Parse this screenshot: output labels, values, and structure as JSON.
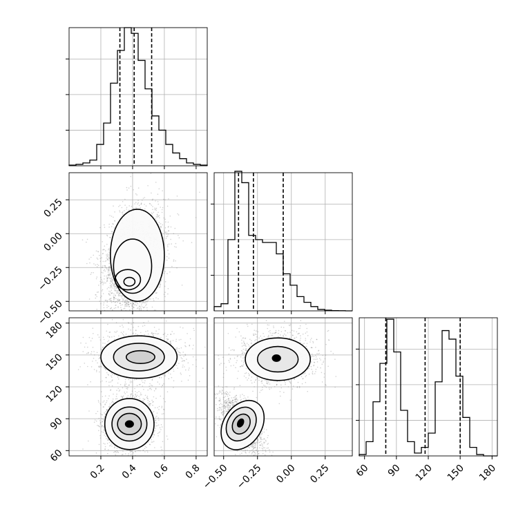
{
  "chart_data": {
    "type": "corner",
    "grid": true,
    "parameters": [
      {
        "range": [
          0.0,
          0.87
        ],
        "ticks": [
          0.2,
          0.4,
          0.6,
          0.8
        ],
        "tick_labels": [
          "0.2",
          "0.4",
          "0.6",
          "0.8"
        ],
        "quantiles": [
          0.32,
          0.41,
          0.52
        ],
        "hist": [
          0.005,
          0.01,
          0.02,
          0.04,
          0.15,
          0.3,
          0.58,
          0.81,
          0.97,
          0.93,
          0.74,
          0.54,
          0.35,
          0.25,
          0.15,
          0.09,
          0.05,
          0.02,
          0.01,
          0.005
        ]
      },
      {
        "range": [
          -0.57,
          0.45
        ],
        "ticks": [
          -0.5,
          -0.25,
          0.0,
          0.25
        ],
        "tick_labels": [
          "−0.50",
          "−0.25",
          "0.00",
          "0.25"
        ],
        "quantiles": [
          -0.39,
          -0.28,
          -0.06
        ],
        "hist": [
          0.03,
          0.05,
          0.5,
          0.98,
          0.9,
          0.53,
          0.5,
          0.48,
          0.48,
          0.4,
          0.26,
          0.18,
          0.1,
          0.06,
          0.03,
          0.01,
          0.005,
          0.002,
          0.001,
          0.0
        ]
      },
      {
        "range": [
          55,
          185
        ],
        "ticks": [
          60,
          90,
          120,
          150,
          180
        ],
        "tick_labels": [
          "60",
          "90",
          "120",
          "150",
          "180"
        ],
        "quantiles": [
          80,
          117,
          150
        ],
        "hist": [
          0.01,
          0.1,
          0.38,
          0.65,
          0.96,
          0.73,
          0.32,
          0.1,
          0.02,
          0.06,
          0.16,
          0.52,
          0.88,
          0.82,
          0.56,
          0.27,
          0.06,
          0.01,
          0.0,
          0.0
        ]
      }
    ],
    "pairs": [
      {
        "x": 0,
        "y": 1,
        "clusters": [
          {
            "cx": 0.38,
            "cy": -0.33,
            "sx": 0.07,
            "sy": 0.12,
            "rho": 0.05,
            "w": 0.55
          },
          {
            "cx": 0.43,
            "cy": -0.12,
            "sx": 0.09,
            "sy": 0.17,
            "rho": 0.25,
            "w": 0.45
          }
        ],
        "contours": [
          {
            "cx": 0.38,
            "cy": -0.355,
            "rx": 0.035,
            "ry": 0.032
          },
          {
            "cx": 0.37,
            "cy": -0.34,
            "rx": 0.08,
            "ry": 0.075
          },
          {
            "cx": 0.4,
            "cy": -0.24,
            "rx": 0.12,
            "ry": 0.2
          },
          {
            "cx": 0.43,
            "cy": -0.16,
            "rx": 0.17,
            "ry": 0.34
          }
        ]
      },
      {
        "x": 0,
        "y": 2,
        "clusters": [
          {
            "cx": 0.38,
            "cy": 85,
            "sx": 0.075,
            "sy": 12,
            "rho": 0.0,
            "w": 0.5
          },
          {
            "cx": 0.44,
            "cy": 148,
            "sx": 0.12,
            "sy": 11,
            "rho": 0.0,
            "w": 0.5
          }
        ],
        "contours": [
          {
            "cx": 0.38,
            "cy": 85,
            "rx": 0.025,
            "ry": 3.0
          },
          {
            "cx": 0.38,
            "cy": 85,
            "rx": 0.075,
            "ry": 10
          },
          {
            "cx": 0.38,
            "cy": 85,
            "rx": 0.11,
            "ry": 16
          },
          {
            "cx": 0.38,
            "cy": 85,
            "rx": 0.155,
            "ry": 24
          },
          {
            "cx": 0.45,
            "cy": 148,
            "rx": 0.09,
            "ry": 6
          },
          {
            "cx": 0.44,
            "cy": 148,
            "rx": 0.16,
            "ry": 13
          },
          {
            "cx": 0.44,
            "cy": 148,
            "rx": 0.24,
            "ry": 20
          }
        ]
      },
      {
        "x": 1,
        "y": 2,
        "clusters": [
          {
            "cx": -0.37,
            "cy": 85,
            "sx": 0.07,
            "sy": 12,
            "rho": -0.6,
            "w": 0.5
          },
          {
            "cx": -0.1,
            "cy": 147,
            "sx": 0.13,
            "sy": 11,
            "rho": 0.0,
            "w": 0.5
          }
        ],
        "contours": [
          {
            "cx": -0.375,
            "cy": 86,
            "rx": 0.02,
            "ry": 4,
            "rho": -0.5
          },
          {
            "cx": -0.37,
            "cy": 85,
            "rx": 0.06,
            "ry": 10,
            "rho": -0.6
          },
          {
            "cx": -0.37,
            "cy": 85,
            "rx": 0.1,
            "ry": 17,
            "rho": -0.6
          },
          {
            "cx": -0.36,
            "cy": 84,
            "rx": 0.14,
            "ry": 25,
            "rho": -0.6
          },
          {
            "cx": -0.11,
            "cy": 147,
            "rx": 0.03,
            "ry": 3
          },
          {
            "cx": -0.1,
            "cy": 146,
            "rx": 0.15,
            "ry": 12
          },
          {
            "cx": -0.1,
            "cy": 146,
            "rx": 0.24,
            "ry": 20
          }
        ]
      }
    ]
  }
}
